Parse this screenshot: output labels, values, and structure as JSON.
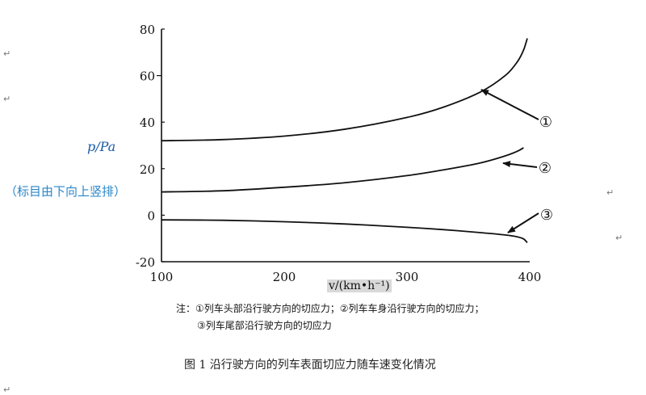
{
  "chart_data": {
    "type": "line",
    "xlabel": "v/(km•h⁻¹)",
    "ylabel": "p/Pa",
    "xlim": [
      100,
      400
    ],
    "ylim": [
      -20,
      80
    ],
    "x_ticks": [
      100,
      200,
      300,
      400
    ],
    "y_ticks": [
      80,
      60,
      40,
      20,
      0,
      -20
    ],
    "series": [
      {
        "name": "①",
        "x": [
          100,
          150,
          200,
          250,
          300,
          330,
          360,
          380,
          390,
          395,
          398
        ],
        "y": [
          32,
          32.5,
          34,
          37,
          42,
          46.5,
          53,
          60,
          66,
          71,
          76
        ]
      },
      {
        "name": "②",
        "x": [
          100,
          150,
          200,
          250,
          300,
          330,
          360,
          380,
          390,
          395
        ],
        "y": [
          10,
          10.5,
          12,
          14,
          17,
          19.5,
          22.5,
          25.5,
          27.5,
          29
        ]
      },
      {
        "name": "③",
        "x": [
          100,
          150,
          200,
          250,
          300,
          330,
          360,
          380,
          390,
          395,
          398
        ],
        "y": [
          -2,
          -2.2,
          -2.8,
          -3.8,
          -5.2,
          -6.2,
          -7.5,
          -8.5,
          -9.3,
          -10.2,
          -11.8
        ]
      }
    ]
  },
  "side_note": "（标目由下向上竖排）",
  "note_line1": "注：①列车头部沿行驶方向的切应力；②列车车身沿行驶方向的切应力；",
  "note_line2": "③列车尾部沿行驶方向的切应力",
  "caption": "图 1    沿行驶方向的列车表面切应力随车速变化情况",
  "paragraph_mark": "↵"
}
